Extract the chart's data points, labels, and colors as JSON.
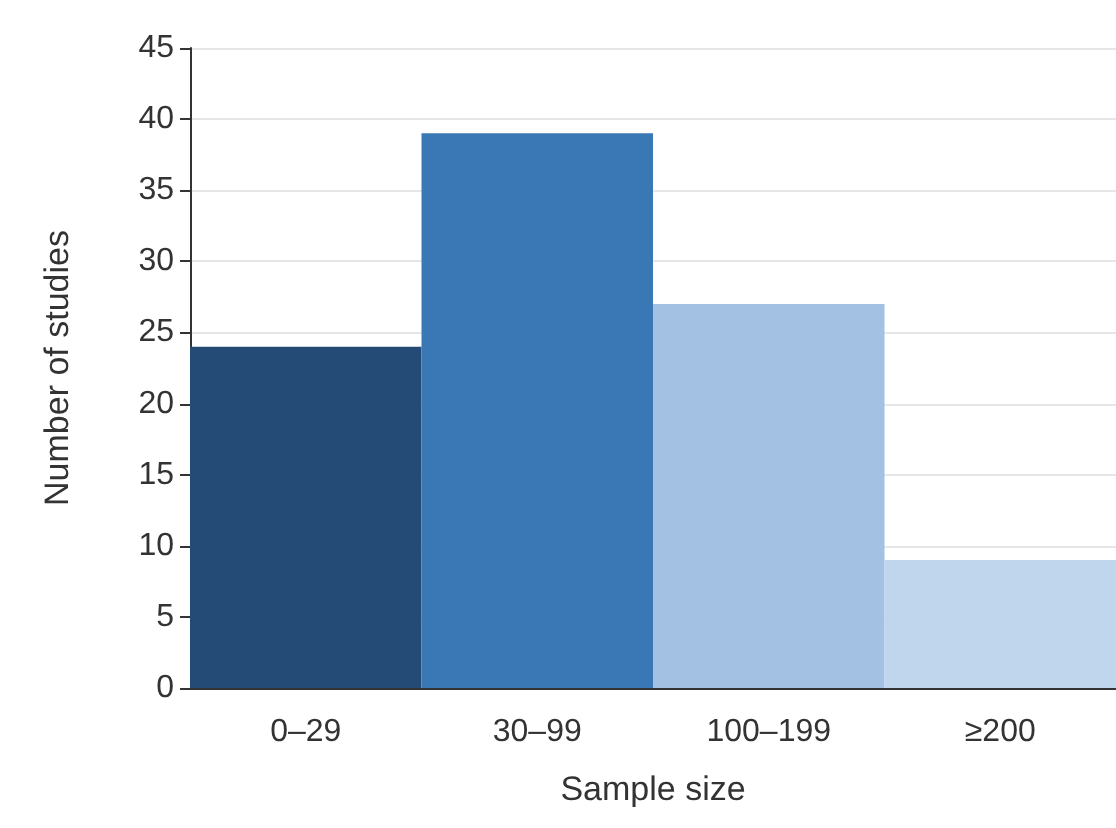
{
  "chart_data": {
    "type": "bar",
    "xlabel": "Sample size",
    "ylabel": "Number of studies",
    "categories": [
      "0–29",
      "30–99",
      "100–199",
      "≥200"
    ],
    "values": [
      24,
      39,
      27,
      9
    ],
    "colors": [
      "#244b75",
      "#3977b5",
      "#a3c2e3",
      "#c0d6ec"
    ],
    "ylim": [
      0,
      45
    ],
    "yticks": [
      0,
      5,
      10,
      15,
      20,
      25,
      30,
      35,
      40,
      45
    ],
    "grid": "y"
  }
}
